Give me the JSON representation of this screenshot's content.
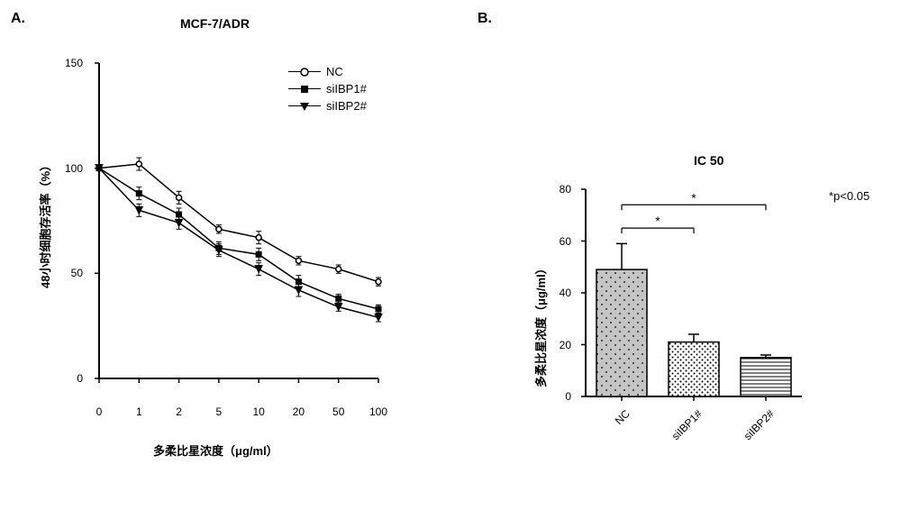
{
  "panelA": {
    "label": "A.",
    "title": "MCF-7/ADR",
    "xlabel": "多柔比星浓度（μg/ml）",
    "ylabel": "48小时细胞存活率（%）",
    "xticks": [
      "0",
      "1",
      "2",
      "5",
      "10",
      "20",
      "50",
      "100"
    ],
    "yticks": [
      0,
      50,
      100,
      150
    ],
    "ylim": [
      0,
      150
    ],
    "legend": [
      {
        "label": "NC",
        "marker": "circle-open",
        "fill": "#ffffff",
        "stroke": "#000000"
      },
      {
        "label": "siIBP1#",
        "marker": "square",
        "fill": "#000000",
        "stroke": "#000000"
      },
      {
        "label": "siIBP2#",
        "marker": "triangle-down",
        "fill": "#000000",
        "stroke": "#000000"
      }
    ],
    "series": [
      {
        "name": "NC",
        "marker": "circle-open",
        "values": [
          100,
          102,
          86,
          71,
          67,
          56,
          52,
          46
        ],
        "errors": [
          0,
          3,
          3,
          2,
          3,
          2,
          2,
          2
        ]
      },
      {
        "name": "siIBP1#",
        "marker": "square",
        "values": [
          100,
          88,
          78,
          62,
          59,
          46,
          38,
          33
        ],
        "errors": [
          0,
          3,
          3,
          3,
          3,
          3,
          2,
          2
        ]
      },
      {
        "name": "siIBP2#",
        "marker": "triangle-down",
        "values": [
          100,
          80,
          74,
          61,
          52,
          42,
          34,
          29
        ],
        "errors": [
          0,
          3,
          3,
          3,
          3,
          3,
          2,
          2
        ]
      }
    ],
    "line_color": "#000000",
    "line_width": 1.5,
    "marker_size": 6,
    "background": "#ffffff",
    "axis_color": "#000000"
  },
  "panelB": {
    "label": "B.",
    "title": "IC 50",
    "ylabel": "多柔比星浓度（μg/ml）",
    "sig_label": "*p<0.05",
    "yticks": [
      0,
      20,
      40,
      60,
      80
    ],
    "ylim": [
      0,
      80
    ],
    "categories": [
      "NC",
      "siIBP1#",
      "siIBP2#"
    ],
    "bars": [
      {
        "label": "NC",
        "value": 49,
        "error": 10,
        "pattern": "dots-sparse",
        "fill": "#c4c4c4"
      },
      {
        "label": "siIBP1#",
        "value": 21,
        "error": 3,
        "pattern": "dots-dense",
        "fill": "#ffffff"
      },
      {
        "label": "siIBP2#",
        "value": 15,
        "error": 1,
        "pattern": "hlines",
        "fill": "#ffffff"
      }
    ],
    "bar_width": 0.7,
    "sig_brackets": [
      {
        "from": 0,
        "to": 1,
        "y": 65,
        "label": "*"
      },
      {
        "from": 0,
        "to": 2,
        "y": 74,
        "label": "*"
      }
    ],
    "axis_color": "#000000",
    "background": "#ffffff"
  }
}
